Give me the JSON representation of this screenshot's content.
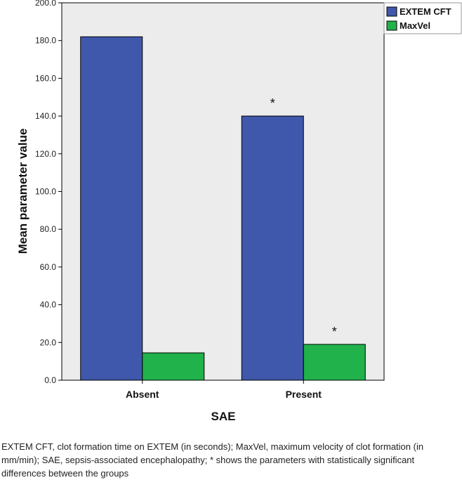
{
  "chart_data": {
    "type": "bar",
    "categories": [
      "Absent",
      "Present"
    ],
    "series": [
      {
        "name": "EXTEM CFT",
        "values": [
          182.0,
          140.0
        ],
        "color": "#3f58ab"
      },
      {
        "name": "MaxVel",
        "values": [
          14.5,
          19.0
        ],
        "color": "#21b24b"
      }
    ],
    "xlabel": "SAE",
    "ylabel": "Mean parameter value",
    "ylim": [
      0,
      200
    ],
    "yticks": [
      "0.0",
      "20.0",
      "40.0",
      "60.0",
      "80.0",
      "100.0",
      "120.0",
      "140.0",
      "160.0",
      "180.0",
      "200.0"
    ],
    "annotations": [
      {
        "category": "Present",
        "series": "EXTEM CFT",
        "text": "*"
      },
      {
        "category": "Present",
        "series": "MaxVel",
        "text": "*"
      }
    ],
    "legend_position": "top-right",
    "plot_background": "#ececec",
    "grid": false
  },
  "caption": "EXTEM CFT, clot formation time on EXTEM (in seconds); MaxVel, maximum velocity of clot formation (in mm/min); SAE, sepsis-associated encephalopathy; * shows the parameters with statistically significant differences between the groups"
}
